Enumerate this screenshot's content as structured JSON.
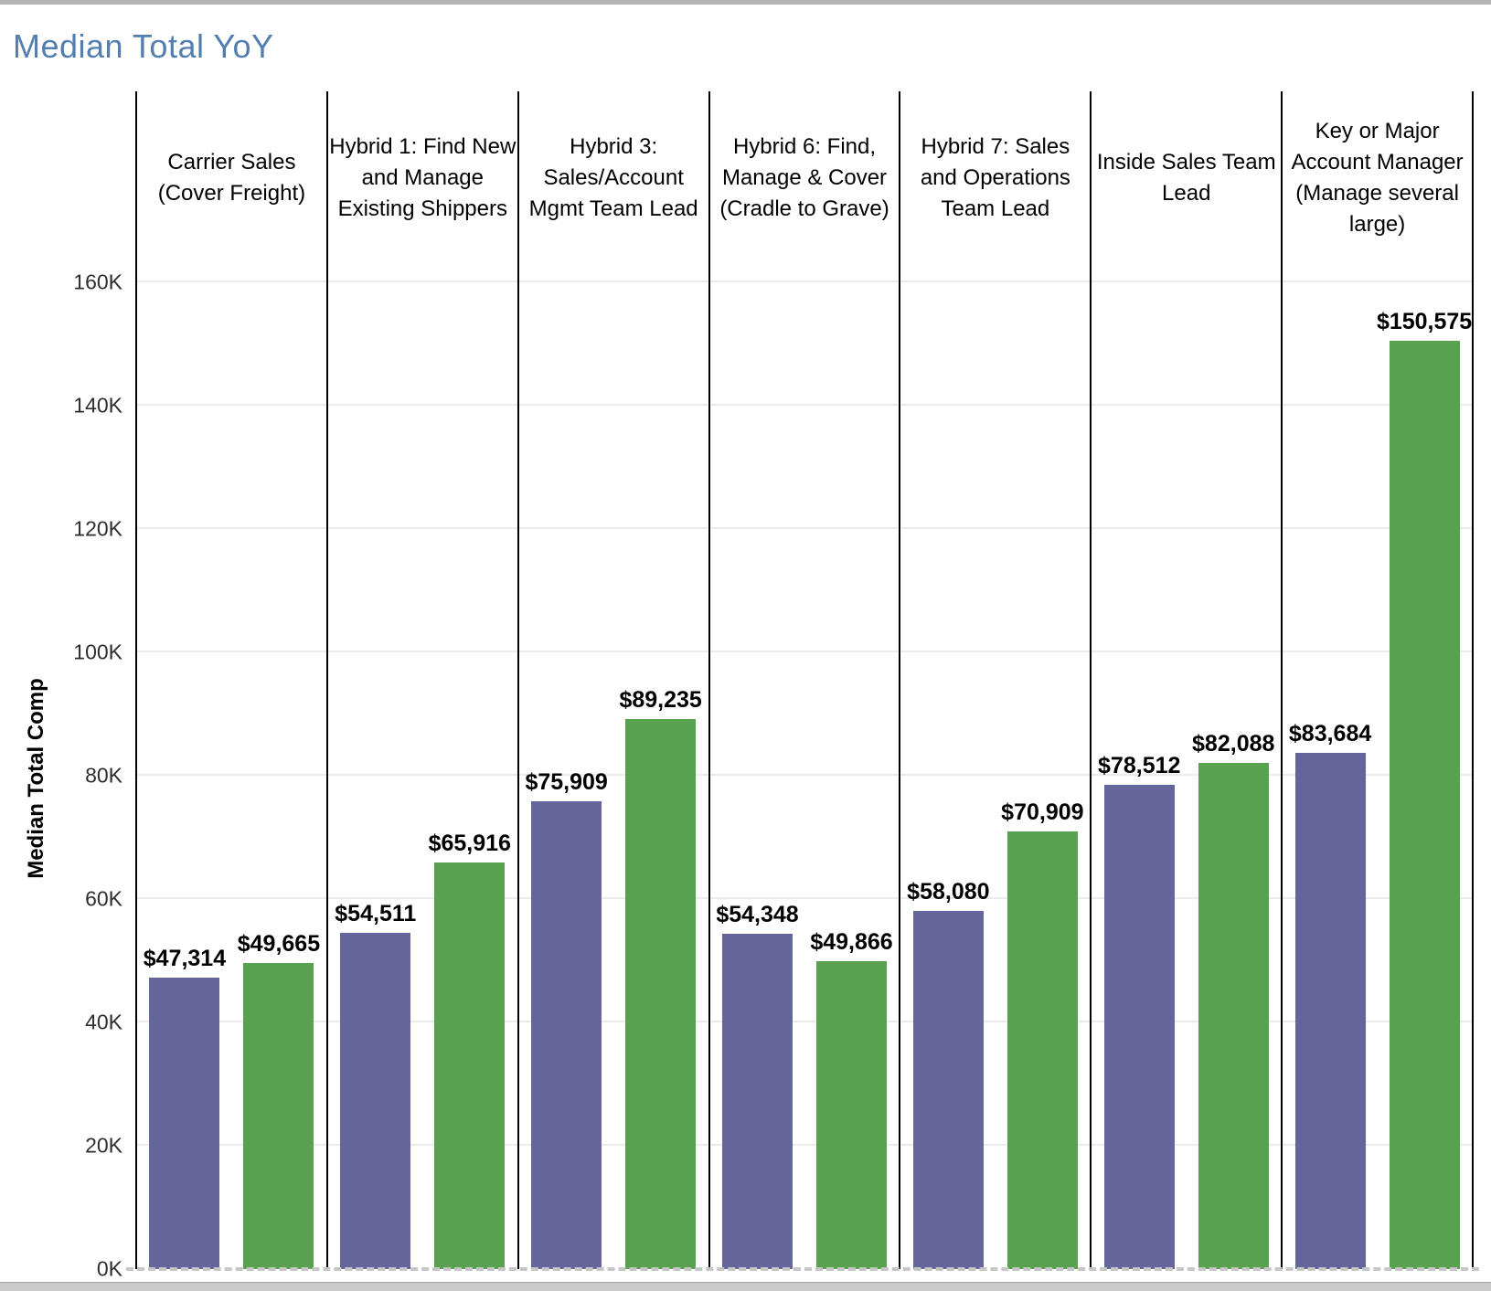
{
  "chart_data": {
    "type": "bar",
    "title": "Median Total YoY",
    "xlabel": "",
    "ylabel": "Median Total Comp",
    "ylim": [
      0,
      162800
    ],
    "grid": true,
    "legend": "none",
    "yticks": [
      {
        "value": 0,
        "label": "0K"
      },
      {
        "value": 20000,
        "label": "20K"
      },
      {
        "value": 40000,
        "label": "40K"
      },
      {
        "value": 60000,
        "label": "60K"
      },
      {
        "value": 80000,
        "label": "80K"
      },
      {
        "value": 100000,
        "label": "100K"
      },
      {
        "value": 120000,
        "label": "120K"
      },
      {
        "value": 140000,
        "label": "140K"
      },
      {
        "value": 160000,
        "label": "160K"
      }
    ],
    "categories": [
      "Carrier Sales (Cover Freight)",
      "Hybrid 1: Find New and Manage Existing Shippers",
      "Hybrid 3: Sales/Account Mgmt Team Lead",
      "Hybrid 6:  Find, Manage & Cover (Cradle to Grave)",
      "Hybrid 7: Sales and Operations Team Lead",
      "Inside Sales Team Lead",
      "Key or Major Account Manager (Manage several large)"
    ],
    "series": [
      {
        "name": "purple-series",
        "color": "#64669B",
        "values": [
          47314,
          54511,
          75909,
          54348,
          58080,
          78512,
          83684
        ],
        "labels": [
          "$47,314",
          "$54,511",
          "$75,909",
          "$54,348",
          "$58,080",
          "$78,512",
          "$83,684"
        ]
      },
      {
        "name": "green-series",
        "color": "#58A24F",
        "values": [
          49665,
          65916,
          89235,
          49866,
          70909,
          82088,
          150575
        ],
        "labels": [
          "$49,665",
          "$65,916",
          "$89,235",
          "$49,866",
          "$70,909",
          "$82,088",
          "$150,575"
        ]
      }
    ]
  },
  "colors": {
    "title": "#527fb0",
    "divider": "#000000",
    "gridline": "#ebebeb",
    "dashed_baseline": "#c6c6c6",
    "scrollbar": "#cbcbcb"
  }
}
